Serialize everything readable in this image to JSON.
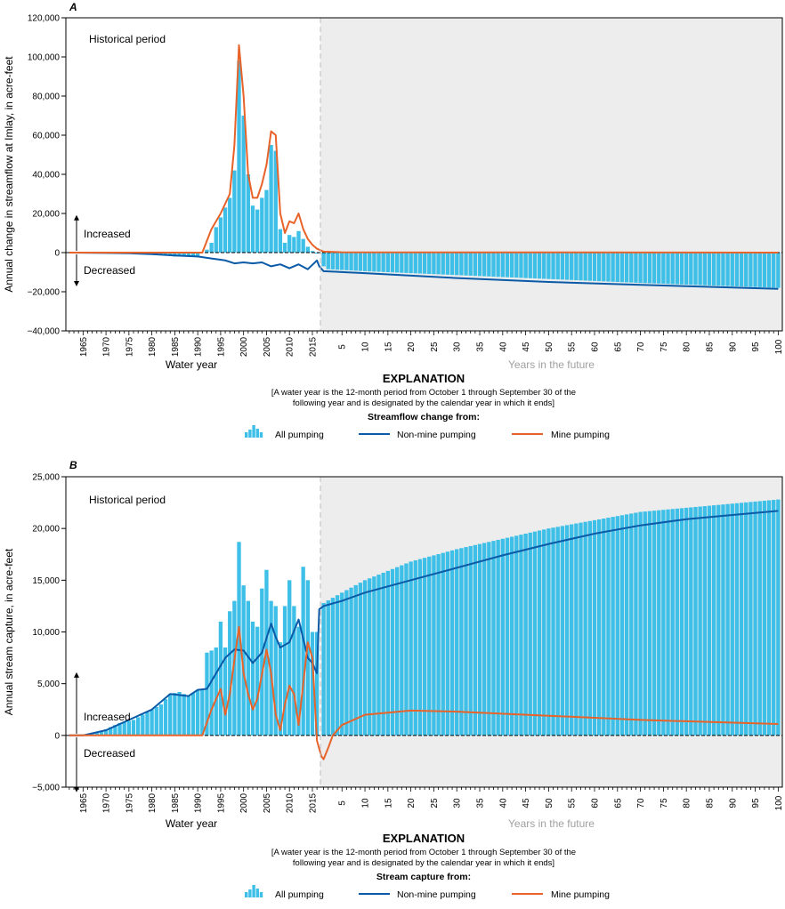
{
  "colors": {
    "bar": "#3dbfe8",
    "non_mine": "#0a5aa8",
    "mine": "#e8632a",
    "future_bg": "#ecedec"
  },
  "chart_data": [
    {
      "panel": "A",
      "type": "bar",
      "ylabel": "Annual change in streamflow at Imlay, in acre-feet",
      "xlabel": "Water year",
      "future_label": "Years in the future",
      "period_label": "Historical period",
      "increase_label": "Increased",
      "decrease_label": "Decreased",
      "ylim": [
        -40000,
        120000
      ],
      "y_ticks": [
        -40000,
        -20000,
        0,
        20000,
        40000,
        60000,
        80000,
        100000,
        120000
      ],
      "y_tick_labels": [
        "−40,000",
        "−20,000",
        "0",
        "20,000",
        "40,000",
        "60,000",
        "80,000",
        "100,000",
        "120,000"
      ],
      "x_ticks_hist": [
        "1965",
        "1970",
        "1975",
        "1980",
        "1985",
        "1990",
        "1995",
        "2000",
        "2005",
        "2010",
        "2015"
      ],
      "x_ticks_future": [
        "5",
        "10",
        "15",
        "20",
        "25",
        "30",
        "35",
        "40",
        "45",
        "50",
        "55",
        "60",
        "65",
        "70",
        "75",
        "80",
        "85",
        "90",
        "95",
        "100"
      ],
      "years_hist": [
        1962,
        2016
      ],
      "years_future": 100,
      "series": [
        {
          "name": "All pumping",
          "hist_points": [
            [
              1962,
              0
            ],
            [
              1975,
              -300
            ],
            [
              1980,
              -600
            ],
            [
              1985,
              -2000
            ],
            [
              1990,
              -2000
            ],
            [
              1991,
              0
            ],
            [
              1992,
              1500
            ],
            [
              1993,
              5000
            ],
            [
              1994,
              13000
            ],
            [
              1995,
              18000
            ],
            [
              1996,
              23000
            ],
            [
              1997,
              28000
            ],
            [
              1998,
              42000
            ],
            [
              1999,
              98000
            ],
            [
              2000,
              70000
            ],
            [
              2001,
              40000
            ],
            [
              2002,
              24000
            ],
            [
              2003,
              22000
            ],
            [
              2004,
              28000
            ],
            [
              2005,
              32000
            ],
            [
              2006,
              55000
            ],
            [
              2007,
              52000
            ],
            [
              2008,
              12000
            ],
            [
              2009,
              5000
            ],
            [
              2010,
              9000
            ],
            [
              2011,
              8000
            ],
            [
              2012,
              11000
            ],
            [
              2013,
              7000
            ],
            [
              2014,
              3000
            ],
            [
              2015,
              800
            ],
            [
              2016,
              -500
            ]
          ],
          "future_points": [
            [
              1,
              -7000
            ],
            [
              2,
              -8500
            ],
            [
              10,
              -9500
            ],
            [
              30,
              -11500
            ],
            [
              50,
              -13500
            ],
            [
              70,
              -15500
            ],
            [
              100,
              -18000
            ]
          ]
        },
        {
          "name": "Non-mine pumping",
          "hist_points": [
            [
              1962,
              0
            ],
            [
              1975,
              -300
            ],
            [
              1980,
              -800
            ],
            [
              1985,
              -1500
            ],
            [
              1990,
              -2000
            ],
            [
              1993,
              -3000
            ],
            [
              1996,
              -4000
            ],
            [
              1998,
              -5500
            ],
            [
              2000,
              -5000
            ],
            [
              2002,
              -5500
            ],
            [
              2004,
              -5000
            ],
            [
              2006,
              -7000
            ],
            [
              2008,
              -6000
            ],
            [
              2010,
              -8000
            ],
            [
              2012,
              -6000
            ],
            [
              2014,
              -8500
            ],
            [
              2016,
              -4000
            ],
            [
              2016.5,
              -7000
            ]
          ],
          "future_points": [
            [
              1,
              -9500
            ],
            [
              10,
              -10500
            ],
            [
              30,
              -13000
            ],
            [
              50,
              -15000
            ],
            [
              70,
              -16500
            ],
            [
              100,
              -18500
            ]
          ]
        },
        {
          "name": "Mine pumping",
          "hist_points": [
            [
              1962,
              0
            ],
            [
              1991,
              0
            ],
            [
              1993,
              12000
            ],
            [
              1995,
              20000
            ],
            [
              1997,
              30000
            ],
            [
              1998,
              55000
            ],
            [
              1999,
              106000
            ],
            [
              2000,
              80000
            ],
            [
              2001,
              40000
            ],
            [
              2002,
              28000
            ],
            [
              2003,
              28000
            ],
            [
              2004,
              35000
            ],
            [
              2005,
              45000
            ],
            [
              2006,
              62000
            ],
            [
              2007,
              60000
            ],
            [
              2008,
              20000
            ],
            [
              2009,
              10000
            ],
            [
              2010,
              16000
            ],
            [
              2011,
              15000
            ],
            [
              2012,
              20000
            ],
            [
              2013,
              12000
            ],
            [
              2014,
              7000
            ],
            [
              2015,
              4000
            ],
            [
              2016,
              2000
            ]
          ],
          "future_points": [
            [
              1,
              500
            ],
            [
              5,
              200
            ],
            [
              100,
              0
            ]
          ]
        }
      ],
      "explanation": {
        "title": "EXPLANATION",
        "note1": "[A water year is the 12-month period from October 1 through September 30 of the",
        "note2": "following year and is designated by the calendar year in which it ends]",
        "subtitle": "Streamflow change from:",
        "legend": [
          "All pumping",
          "Non-mine pumping",
          "Mine pumping"
        ]
      }
    },
    {
      "panel": "B",
      "type": "bar",
      "ylabel": "Annual stream capture, in acre-feet",
      "xlabel": "Water year",
      "future_label": "Years in the future",
      "period_label": "Historical period",
      "increase_label": "Increased",
      "decrease_label": "Decreased",
      "ylim": [
        -5000,
        25000
      ],
      "y_ticks": [
        -5000,
        0,
        5000,
        10000,
        15000,
        20000,
        25000
      ],
      "y_tick_labels": [
        "−5,000",
        "0",
        "5,000",
        "10,000",
        "15,000",
        "20,000",
        "25,000"
      ],
      "x_ticks_hist": [
        "1965",
        "1970",
        "1975",
        "1980",
        "1985",
        "1990",
        "1995",
        "2000",
        "2005",
        "2010",
        "2015"
      ],
      "x_ticks_future": [
        "5",
        "10",
        "15",
        "20",
        "25",
        "30",
        "35",
        "40",
        "45",
        "50",
        "55",
        "60",
        "65",
        "70",
        "75",
        "80",
        "85",
        "90",
        "95",
        "100"
      ],
      "years_hist": [
        1962,
        2016
      ],
      "years_future": 100,
      "series": [
        {
          "name": "All pumping",
          "hist_points": [
            [
              1962,
              0
            ],
            [
              1965,
              0
            ],
            [
              1967,
              200
            ],
            [
              1970,
              600
            ],
            [
              1973,
              1200
            ],
            [
              1976,
              1500
            ],
            [
              1978,
              2000
            ],
            [
              1980,
              2500
            ],
            [
              1982,
              3000
            ],
            [
              1984,
              4000
            ],
            [
              1986,
              4200
            ],
            [
              1988,
              3800
            ],
            [
              1990,
              4400
            ],
            [
              1991,
              4400
            ],
            [
              1992,
              8000
            ],
            [
              1993,
              8200
            ],
            [
              1994,
              8500
            ],
            [
              1995,
              11000
            ],
            [
              1996,
              8500
            ],
            [
              1997,
              12000
            ],
            [
              1998,
              13000
            ],
            [
              1999,
              18700
            ],
            [
              2000,
              14500
            ],
            [
              2001,
              13000
            ],
            [
              2002,
              11000
            ],
            [
              2003,
              10500
            ],
            [
              2004,
              14200
            ],
            [
              2005,
              16000
            ],
            [
              2006,
              13000
            ],
            [
              2007,
              12500
            ],
            [
              2008,
              9000
            ],
            [
              2009,
              12500
            ],
            [
              2010,
              15000
            ],
            [
              2011,
              12500
            ],
            [
              2012,
              10500
            ],
            [
              2013,
              16300
            ],
            [
              2014,
              15000
            ],
            [
              2015,
              10000
            ],
            [
              2016,
              10000
            ]
          ],
          "future_points": [
            [
              1,
              12800
            ],
            [
              5,
              13800
            ],
            [
              10,
              15000
            ],
            [
              20,
              16800
            ],
            [
              30,
              18000
            ],
            [
              40,
              19000
            ],
            [
              50,
              20000
            ],
            [
              60,
              20800
            ],
            [
              70,
              21600
            ],
            [
              80,
              22000
            ],
            [
              90,
              22400
            ],
            [
              100,
              22800
            ]
          ]
        },
        {
          "name": "Non-mine pumping",
          "hist_points": [
            [
              1962,
              0
            ],
            [
              1965,
              0
            ],
            [
              1970,
              500
            ],
            [
              1975,
              1500
            ],
            [
              1980,
              2500
            ],
            [
              1984,
              4000
            ],
            [
              1988,
              3800
            ],
            [
              1990,
              4400
            ],
            [
              1992,
              4500
            ],
            [
              1994,
              6000
            ],
            [
              1996,
              7500
            ],
            [
              1998,
              8300
            ],
            [
              2000,
              8200
            ],
            [
              2002,
              7000
            ],
            [
              2004,
              8000
            ],
            [
              2006,
              10800
            ],
            [
              2007,
              9500
            ],
            [
              2008,
              8500
            ],
            [
              2010,
              9000
            ],
            [
              2012,
              11200
            ],
            [
              2014,
              7500
            ],
            [
              2015,
              7000
            ],
            [
              2016,
              6000
            ],
            [
              2016.5,
              12200
            ]
          ],
          "future_points": [
            [
              1,
              12500
            ],
            [
              5,
              13000
            ],
            [
              10,
              13800
            ],
            [
              20,
              15000
            ],
            [
              30,
              16200
            ],
            [
              40,
              17400
            ],
            [
              50,
              18500
            ],
            [
              60,
              19500
            ],
            [
              70,
              20300
            ],
            [
              80,
              20900
            ],
            [
              90,
              21300
            ],
            [
              100,
              21700
            ]
          ]
        },
        {
          "name": "Mine pumping",
          "hist_points": [
            [
              1962,
              0
            ],
            [
              1991,
              0
            ],
            [
              1993,
              2500
            ],
            [
              1995,
              4500
            ],
            [
              1996,
              2000
            ],
            [
              1997,
              4000
            ],
            [
              1999,
              10500
            ],
            [
              2000,
              6000
            ],
            [
              2001,
              4000
            ],
            [
              2002,
              2500
            ],
            [
              2003,
              3500
            ],
            [
              2005,
              8300
            ],
            [
              2006,
              6000
            ],
            [
              2007,
              2000
            ],
            [
              2008,
              500
            ],
            [
              2009,
              3000
            ],
            [
              2010,
              4800
            ],
            [
              2011,
              4000
            ],
            [
              2012,
              1000
            ],
            [
              2013,
              5000
            ],
            [
              2014,
              9000
            ],
            [
              2015,
              7500
            ],
            [
              2016,
              -500
            ]
          ],
          "future_points": [
            [
              0.5,
              -2000
            ],
            [
              1,
              -2300
            ],
            [
              2,
              -1200
            ],
            [
              3,
              0
            ],
            [
              5,
              1000
            ],
            [
              10,
              2000
            ],
            [
              20,
              2400
            ],
            [
              30,
              2300
            ],
            [
              50,
              1900
            ],
            [
              70,
              1500
            ],
            [
              100,
              1100
            ]
          ]
        }
      ],
      "explanation": {
        "title": "EXPLANATION",
        "note1": "[A water year is the 12-month period from October 1 through September 30 of the",
        "note2": "following year and is designated by the calendar year in which it ends]",
        "subtitle": "Stream capture from:",
        "legend": [
          "All pumping",
          "Non-mine pumping",
          "Mine pumping"
        ]
      }
    }
  ]
}
